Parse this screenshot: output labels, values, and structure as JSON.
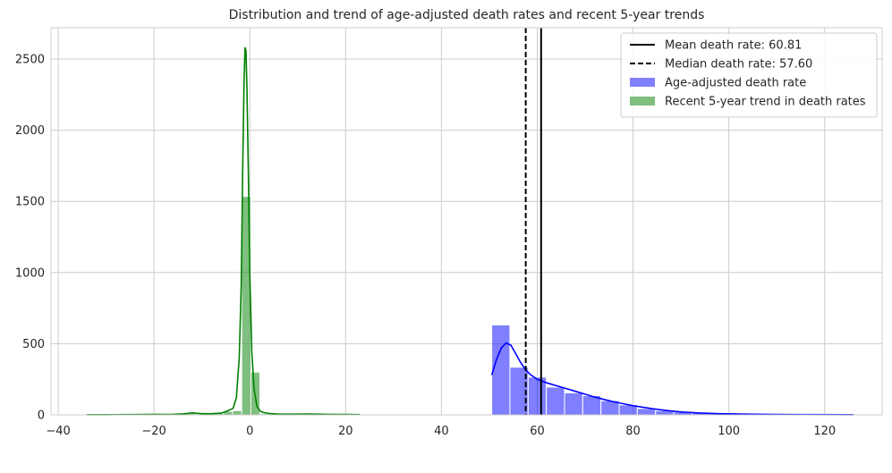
{
  "chart_data": {
    "type": "histogram",
    "title": "Distribution and trend of age-adjusted death rates and recent 5-year trends",
    "xlabel": "",
    "ylabel": "",
    "xlim": [
      -41.5,
      132
    ],
    "ylim": [
      0,
      2720
    ],
    "x_ticks": [
      -40,
      -20,
      0,
      20,
      40,
      60,
      80,
      100,
      120
    ],
    "y_ticks": [
      0,
      500,
      1000,
      1500,
      2000,
      2500
    ],
    "grid": true,
    "legend_placement": "top-right",
    "series": [
      {
        "name": "Age-adjusted death rate",
        "color": "#0000ff",
        "bins": [
          {
            "x0": 50.5,
            "x1": 54.3,
            "count": 632
          },
          {
            "x0": 54.3,
            "x1": 58.1,
            "count": 335
          },
          {
            "x0": 58.1,
            "x1": 61.9,
            "count": 265
          },
          {
            "x0": 61.9,
            "x1": 65.7,
            "count": 195
          },
          {
            "x0": 65.7,
            "x1": 69.5,
            "count": 155
          },
          {
            "x0": 69.5,
            "x1": 73.3,
            "count": 135
          },
          {
            "x0": 73.3,
            "x1": 77.1,
            "count": 100
          },
          {
            "x0": 77.1,
            "x1": 80.9,
            "count": 70
          },
          {
            "x0": 80.9,
            "x1": 84.7,
            "count": 45
          },
          {
            "x0": 84.7,
            "x1": 88.5,
            "count": 30
          },
          {
            "x0": 88.5,
            "x1": 92.3,
            "count": 20
          },
          {
            "x0": 92.3,
            "x1": 96.1,
            "count": 15
          },
          {
            "x0": 96.1,
            "x1": 99.9,
            "count": 10
          },
          {
            "x0": 99.9,
            "x1": 103.7,
            "count": 6
          },
          {
            "x0": 103.7,
            "x1": 107.5,
            "count": 4
          },
          {
            "x0": 107.5,
            "x1": 111.3,
            "count": 3
          },
          {
            "x0": 111.3,
            "x1": 115.1,
            "count": 3
          },
          {
            "x0": 115.1,
            "x1": 118.9,
            "count": 2
          },
          {
            "x0": 118.9,
            "x1": 122.7,
            "count": 2
          },
          {
            "x0": 122.7,
            "x1": 126.0,
            "count": 2
          }
        ],
        "kde": {
          "x": [
            50.5,
            51.5,
            52.5,
            53.5,
            54.5,
            55.5,
            56.5,
            57.5,
            58.5,
            60,
            62,
            64,
            66,
            68,
            70,
            72,
            74,
            76,
            78,
            80,
            82,
            84,
            86,
            88,
            90,
            94,
            98,
            104,
            110,
            116,
            126
          ],
          "y": [
            280,
            390,
            470,
            505,
            490,
            430,
            370,
            320,
            285,
            250,
            225,
            205,
            185,
            165,
            145,
            125,
            108,
            92,
            78,
            65,
            54,
            44,
            35,
            27,
            21,
            13,
            8,
            5,
            3,
            2,
            1
          ]
        }
      },
      {
        "name": "Recent 5-year trend in death rates",
        "color": "#008000",
        "bins": [
          {
            "x0": -34.0,
            "x1": -32.1,
            "count": 5
          },
          {
            "x0": -32.1,
            "x1": -30.2,
            "count": 5
          },
          {
            "x0": -30.2,
            "x1": -28.3,
            "count": 5
          },
          {
            "x0": -28.3,
            "x1": -26.4,
            "count": 5
          },
          {
            "x0": -26.4,
            "x1": -24.5,
            "count": 5
          },
          {
            "x0": -24.5,
            "x1": -22.6,
            "count": 5
          },
          {
            "x0": -22.6,
            "x1": -20.7,
            "count": 5
          },
          {
            "x0": -20.7,
            "x1": -18.8,
            "count": 6
          },
          {
            "x0": -18.8,
            "x1": -16.9,
            "count": 6
          },
          {
            "x0": -16.9,
            "x1": -15.0,
            "count": 6
          },
          {
            "x0": -15.0,
            "x1": -13.1,
            "count": 6
          },
          {
            "x0": -13.1,
            "x1": -11.2,
            "count": 10
          },
          {
            "x0": -11.2,
            "x1": -9.3,
            "count": 7
          },
          {
            "x0": -9.3,
            "x1": -7.4,
            "count": 8
          },
          {
            "x0": -7.4,
            "x1": -5.5,
            "count": 12
          },
          {
            "x0": -5.5,
            "x1": -3.6,
            "count": 25
          },
          {
            "x0": -3.6,
            "x1": -1.7,
            "count": 30
          },
          {
            "x0": -1.7,
            "x1": 0.2,
            "count": 1535
          },
          {
            "x0": 0.2,
            "x1": 2.1,
            "count": 300
          },
          {
            "x0": 2.1,
            "x1": 4.0,
            "count": 8
          },
          {
            "x0": 4.0,
            "x1": 5.9,
            "count": 5
          },
          {
            "x0": 5.9,
            "x1": 7.8,
            "count": 5
          },
          {
            "x0": 7.8,
            "x1": 9.7,
            "count": 4
          },
          {
            "x0": 9.7,
            "x1": 11.6,
            "count": 4
          },
          {
            "x0": 11.6,
            "x1": 13.5,
            "count": 5
          },
          {
            "x0": 13.5,
            "x1": 15.4,
            "count": 4
          },
          {
            "x0": 15.4,
            "x1": 17.3,
            "count": 4
          },
          {
            "x0": 17.3,
            "x1": 19.2,
            "count": 4
          },
          {
            "x0": 19.2,
            "x1": 21.1,
            "count": 4
          },
          {
            "x0": 21.1,
            "x1": 23.0,
            "count": 4
          }
        ],
        "kde": {
          "x": [
            -34,
            -30,
            -26,
            -22,
            -20,
            -18,
            -16,
            -14,
            -12,
            -10,
            -8,
            -6,
            -4.5,
            -3.5,
            -2.8,
            -2.2,
            -1.8,
            -1.5,
            -1.2,
            -1.0,
            -0.8,
            -0.6,
            -0.3,
            0.0,
            0.4,
            0.9,
            1.5,
            2.2,
            3.0,
            4.0,
            6,
            8,
            10,
            12,
            14,
            16,
            18,
            20,
            23
          ],
          "y": [
            1,
            1,
            2,
            3,
            4,
            3,
            4,
            7,
            14,
            8,
            8,
            12,
            30,
            45,
            120,
            400,
            900,
            1700,
            2350,
            2580,
            2560,
            2300,
            1700,
            1000,
            450,
            180,
            60,
            25,
            15,
            10,
            6,
            5,
            5,
            6,
            5,
            4,
            3,
            3,
            2
          ]
        }
      }
    ],
    "reference_lines": [
      {
        "name": "Mean death rate: 60.81",
        "value": 60.81,
        "style": "solid",
        "color": "#000000"
      },
      {
        "name": "Median death rate: 57.60",
        "value": 57.6,
        "style": "dashed",
        "color": "#000000"
      }
    ],
    "legend": [
      {
        "label": "Mean death rate: 60.81",
        "kind": "line-solid",
        "color": "#000000"
      },
      {
        "label": "Median death rate: 57.60",
        "kind": "line-dashed",
        "color": "#000000"
      },
      {
        "label": "Age-adjusted death rate",
        "kind": "patch",
        "color": "#8080ff"
      },
      {
        "label": "Recent 5-year trend in death rates",
        "kind": "patch",
        "color": "#80bf80"
      }
    ]
  }
}
